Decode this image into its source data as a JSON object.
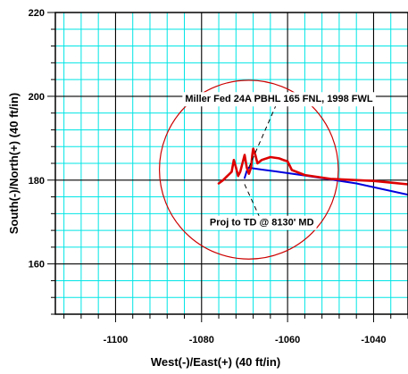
{
  "chart_data": {
    "type": "line",
    "xlabel": "West(-)/East(+) (40 ft/in)",
    "ylabel": "South(-)/North(+) (40 ft/in)",
    "xlim": [
      -1114,
      -1032
    ],
    "ylim": [
      148,
      220
    ],
    "x_ticks": [
      {
        "value": -1100,
        "label": "-1100"
      },
      {
        "value": -1080,
        "label": "-1080"
      },
      {
        "value": -1060,
        "label": "-1060"
      },
      {
        "value": -1040,
        "label": "-1040"
      }
    ],
    "y_ticks": [
      {
        "value": 160,
        "label": "160"
      },
      {
        "value": 180,
        "label": "180"
      },
      {
        "value": 200,
        "label": "200"
      },
      {
        "value": 220,
        "label": "220"
      }
    ],
    "grid": true,
    "colors": {
      "minor_grid": "#00e5e5",
      "major_grid": "#000000",
      "target_circle": "#cc0000",
      "actual_path": "#dd0000",
      "plan_path": "#0000dd"
    },
    "target_circle": {
      "center": [
        -1069,
        182.5
      ],
      "radius": 20.8
    },
    "series": [
      {
        "type": "actual",
        "x": [
          -1032,
          -1036,
          -1040,
          -1044,
          -1050,
          -1056,
          -1059,
          -1060,
          -1061,
          -1062,
          -1064,
          -1066,
          -1067,
          -1067.5,
          -1068,
          -1068.2,
          -1068.5,
          -1069,
          -1069.5,
          -1070,
          -1071,
          -1071.5,
          -1072,
          -1072.5,
          -1073,
          -1074,
          -1075,
          -1076
        ],
        "y": [
          179,
          179.4,
          179.8,
          180,
          180.3,
          181.2,
          182.4,
          184.5,
          184.8,
          185.2,
          185.5,
          184.8,
          184,
          186,
          187.5,
          186,
          183,
          181.5,
          183,
          186,
          182,
          181,
          183,
          184.8,
          182,
          181,
          180,
          179.2
        ]
      },
      {
        "type": "plan",
        "x": [
          -1032,
          -1044,
          -1056,
          -1063,
          -1066,
          -1068,
          -1069,
          -1069.5,
          -1070
        ],
        "y": [
          176.5,
          179.2,
          181.1,
          182.1,
          182.5,
          182.8,
          183,
          182.2,
          180.5
        ]
      }
    ],
    "annotations": [
      {
        "text": "Miller Fed 24A PBHL 165 FNL, 1998 FWL",
        "from": [
          -1069,
          183
        ],
        "to": [
          -1062,
          199.5
        ]
      },
      {
        "text": "Proj to TD @ 8130' MD",
        "from": [
          -1070,
          179
        ],
        "to": [
          -1066,
          170
        ]
      }
    ]
  }
}
